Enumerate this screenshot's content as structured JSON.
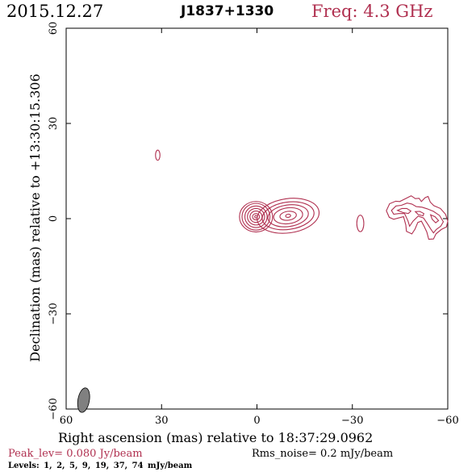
{
  "header": {
    "date": "2015.12.27",
    "source": "J1837+1330",
    "freq": "Freq: 4.3 GHz"
  },
  "footer": {
    "peak": "Peak_lev=  0.080 Jy/beam",
    "rms": "Rms_noise=  0.2 mJy/beam",
    "levels": "Levels:   1,   2,   5,   9,  19,  37,  74 mJy/beam"
  },
  "colors": {
    "contour": "#b03050",
    "beam": "#808080"
  },
  "chart_data": {
    "type": "contour",
    "title": "J1837+1330",
    "xlabel": "Right ascension (mas) relative to 18:37:29.0962",
    "ylabel": "Declination (mas) relative to +13:30:15.306",
    "xlim": [
      60,
      -60
    ],
    "ylim": [
      -60,
      60
    ],
    "xticks": [
      60,
      30,
      0,
      -30,
      -60
    ],
    "yticks": [
      -60,
      -30,
      0,
      30,
      60
    ],
    "xtick_labels": [
      "60",
      "30",
      "0",
      "−30",
      "−60"
    ],
    "ytick_labels": [
      "−60",
      "−30",
      "0",
      "30",
      "60"
    ],
    "levels_mJy": [
      1,
      2,
      5,
      9,
      19,
      37,
      74
    ],
    "peak_Jy_per_beam": 0.08,
    "rms_mJy_per_beam": 0.2,
    "beam": {
      "x": 54.5,
      "y": -57.2,
      "major": 3.9,
      "minor": 1.8,
      "pa_deg": 10
    },
    "components": [
      {
        "name": "core",
        "x": 0.3,
        "y": 0.6,
        "levels": [
          {
            "rx": 5.2,
            "ry": 4.8
          },
          {
            "rx": 4.4,
            "ry": 4.2
          },
          {
            "rx": 3.5,
            "ry": 3.4
          },
          {
            "rx": 2.7,
            "ry": 2.6
          },
          {
            "rx": 1.9,
            "ry": 1.8
          },
          {
            "rx": 1.1,
            "ry": 1.0
          },
          {
            "rx": 0.4,
            "ry": 0.4
          }
        ]
      },
      {
        "name": "jet-1",
        "x": -9.8,
        "y": 0.9,
        "angle": -8,
        "levels": [
          {
            "rx": 9.8,
            "ry": 5.4
          },
          {
            "rx": 8.2,
            "ry": 4.3
          },
          {
            "rx": 6.4,
            "ry": 3.4
          },
          {
            "rx": 4.6,
            "ry": 2.5
          },
          {
            "rx": 2.6,
            "ry": 1.4
          },
          {
            "rx": 0.8,
            "ry": 0.5
          }
        ]
      },
      {
        "name": "knot-a",
        "x": 31.2,
        "y": 20.0,
        "levels": [
          {
            "rx": 0.7,
            "ry": 1.6
          }
        ]
      },
      {
        "name": "knot-b",
        "x": -32.5,
        "y": -1.5,
        "levels": [
          {
            "rx": 1.1,
            "ry": 2.6
          }
        ]
      }
    ],
    "outer_jet_contours": [
      [
        [
          -40.7,
          2.5
        ],
        [
          -41.7,
          4.7
        ],
        [
          -43.6,
          5.5
        ],
        [
          -44.9,
          5.4
        ],
        [
          -46.7,
          6.3
        ],
        [
          -48.5,
          7.2
        ],
        [
          -49.8,
          6.3
        ],
        [
          -51,
          6.4
        ],
        [
          -51.7,
          5.4
        ],
        [
          -52.9,
          6.6
        ],
        [
          -53.8,
          7.0
        ],
        [
          -54.5,
          5.2
        ],
        [
          -55.6,
          4.1
        ],
        [
          -57.7,
          3.2
        ],
        [
          -59.3,
          1.4
        ],
        [
          -60,
          -0.8
        ],
        [
          -59.6,
          -2.6
        ],
        [
          -58.0,
          -3.4
        ],
        [
          -56.3,
          -4.8
        ],
        [
          -55.5,
          -6.4
        ],
        [
          -54,
          -6.5
        ],
        [
          -53.4,
          -4.2
        ],
        [
          -52.6,
          -2.5
        ],
        [
          -51.7,
          -0.8
        ],
        [
          -50.6,
          -1.2
        ],
        [
          -49.7,
          -3.3
        ],
        [
          -48.7,
          -4.8
        ],
        [
          -47,
          -4
        ],
        [
          -46.8,
          -2
        ],
        [
          -46.1,
          0.6
        ],
        [
          -44.5,
          0.2
        ],
        [
          -43,
          -0.2
        ],
        [
          -41.6,
          0.4
        ],
        [
          -40.7,
          2.5
        ]
      ],
      [
        [
          -42.3,
          2.6
        ],
        [
          -43.7,
          4
        ],
        [
          -45.4,
          4.2
        ],
        [
          -47.2,
          4.9
        ],
        [
          -48.7,
          4.6
        ],
        [
          -50.1,
          3.8
        ],
        [
          -51.9,
          3.6
        ],
        [
          -53.5,
          3.1
        ],
        [
          -55.5,
          2.3
        ],
        [
          -57.4,
          1
        ],
        [
          -58.6,
          -1
        ],
        [
          -57.8,
          -2.4
        ],
        [
          -56.4,
          -3.4
        ],
        [
          -55.5,
          -4.5
        ],
        [
          -54.6,
          -3.2
        ],
        [
          -53.6,
          -1.6
        ],
        [
          -52.4,
          0.2
        ],
        [
          -50.7,
          0.8
        ],
        [
          -49.1,
          -0.8
        ],
        [
          -48,
          -2.4
        ],
        [
          -47.5,
          -0.7
        ],
        [
          -46.4,
          1.6
        ],
        [
          -44.6,
          1.6
        ],
        [
          -43,
          1.4
        ],
        [
          -42.3,
          2.6
        ]
      ],
      [
        [
          -44.2,
          2.6
        ],
        [
          -45.6,
          3.2
        ],
        [
          -47.1,
          3.2
        ],
        [
          -48.4,
          2.4
        ],
        [
          -47.6,
          1.6
        ],
        [
          -46,
          1.9
        ],
        [
          -44.2,
          2.6
        ]
      ],
      [
        [
          -49.8,
          2.2
        ],
        [
          -51.2,
          2.3
        ],
        [
          -52.5,
          1.6
        ],
        [
          -52.2,
          0.9
        ],
        [
          -50.7,
          1.3
        ],
        [
          -49.8,
          2.2
        ]
      ],
      [
        [
          -54.6,
          1.2
        ],
        [
          -56,
          0.6
        ],
        [
          -57.1,
          -0.6
        ],
        [
          -56.2,
          -1.3
        ],
        [
          -55.1,
          -0.2
        ],
        [
          -54.6,
          1.2
        ]
      ]
    ]
  }
}
